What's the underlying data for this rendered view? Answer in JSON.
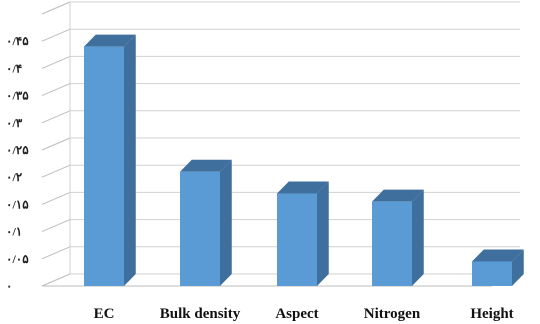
{
  "chart_data": {
    "type": "bar",
    "title": "",
    "xlabel": "",
    "ylabel": "",
    "categories": [
      "EC",
      "Bulk density",
      "Aspect",
      "Nitrogen",
      "Height"
    ],
    "values": [
      0.44,
      0.21,
      0.17,
      0.155,
      0.045
    ],
    "ylim": [
      0,
      0.5
    ],
    "y_ticks": [
      0,
      0.05,
      0.1,
      0.15,
      0.2,
      0.25,
      0.3,
      0.35,
      0.4,
      0.45,
      0.5
    ],
    "y_tick_labels": [
      "۰",
      "۰/۰۵",
      "۰/۱",
      "۰/۱۵",
      "۰/۲",
      "۰/۲۵",
      "۰/۳",
      "۰/۳۵",
      "۰/۴",
      "۰/۴۵",
      ""
    ],
    "grid": true,
    "legend": "none",
    "colors": {
      "bar_front": "#5b9bd5",
      "bar_side": "#3f6f9c",
      "bar_top": "#7fb0de",
      "grid": "#d0d0d0"
    }
  }
}
